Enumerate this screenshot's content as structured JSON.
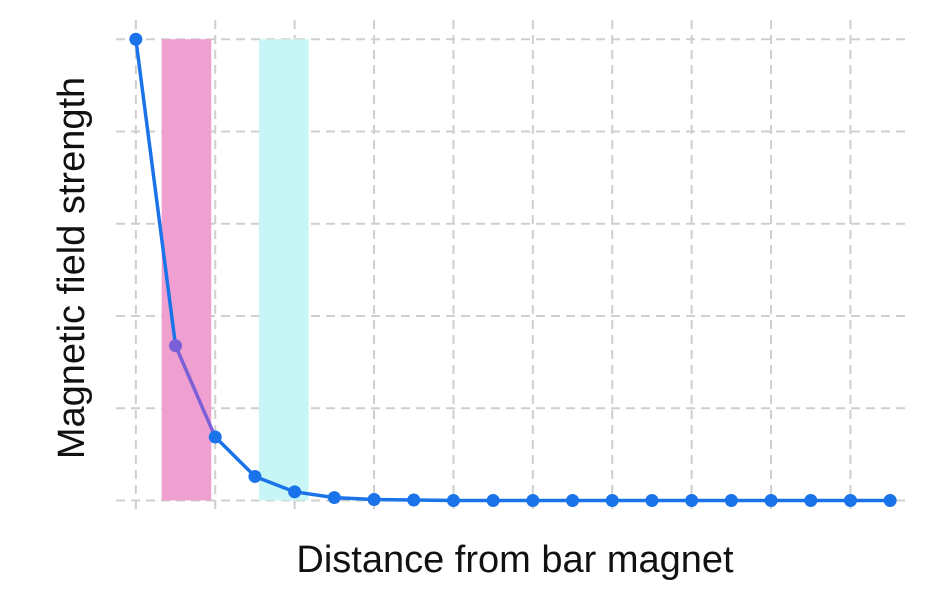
{
  "chart_data": {
    "type": "line",
    "title": "",
    "xlabel": "Distance from bar magnet",
    "ylabel": "Magnetic field strength",
    "grid": true,
    "tick_labels_shown": false,
    "xlim": [
      -0.5,
      19.5
    ],
    "ylim": [
      -0.12,
      5.0
    ],
    "x": [
      0,
      1,
      2,
      3,
      4,
      5,
      6,
      7,
      8,
      9,
      10,
      11,
      12,
      13,
      14,
      15,
      16,
      17,
      18,
      19
    ],
    "series": [
      {
        "values": [
          4.8,
          1.61,
          0.66,
          0.25,
          0.09,
          0.03,
          0.01,
          0.005,
          0,
          0,
          0,
          0,
          0,
          0,
          0,
          0,
          0,
          0,
          0,
          0
        ],
        "color": "#1a73e8"
      }
    ],
    "highlight_bands": [
      {
        "x_range": [
          0.65,
          1.9
        ],
        "color": "#f0a0d0"
      },
      {
        "x_range": [
          3.1,
          4.35
        ],
        "color": "#c8f5f5"
      }
    ],
    "colors": {
      "line": "#1a73e8",
      "line_in_pink_band": "#7a5fd6",
      "point": "#1a73e8",
      "grid": "#cfcfcf"
    }
  }
}
